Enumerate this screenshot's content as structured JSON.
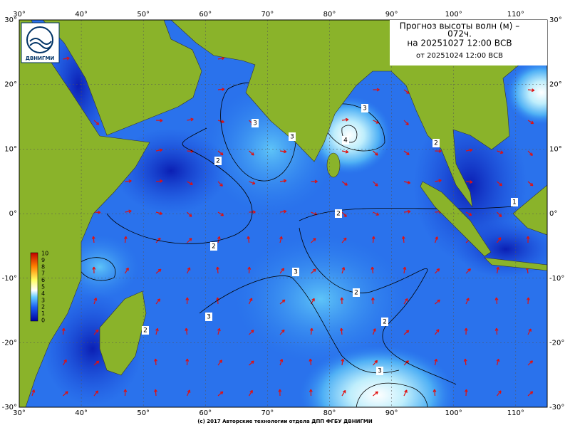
{
  "header": {
    "title_line1": "Прогноз высоты волн (м) –",
    "title_line2": "072ч.",
    "valid_time": "на 20251027 12:00 ВСВ",
    "issued_time": "от 20251024 12:00 ВСВ",
    "logo_text": "ДВНИГМИ"
  },
  "axes": {
    "lon_labels": [
      "30°",
      "40°",
      "50°",
      "60°",
      "70°",
      "80°",
      "90°",
      "100°",
      "110°"
    ],
    "lat_labels": [
      "30°",
      "20°",
      "10°",
      "0°",
      "-10°",
      "-20°",
      "-30°"
    ]
  },
  "colorbar": {
    "labels": [
      "10",
      "9",
      "8",
      "7",
      "6",
      "5",
      "4",
      "3",
      "2",
      "1",
      "0"
    ]
  },
  "contour_labels": [
    "3",
    "3",
    "2",
    "2",
    "2",
    "4",
    "3",
    "2",
    "1",
    "3",
    "2",
    "3",
    "2",
    "2",
    "3"
  ],
  "footer": "(c) 2017 Авторские технологии отдела ДПП ФГБУ ДВНИГМИ"
}
